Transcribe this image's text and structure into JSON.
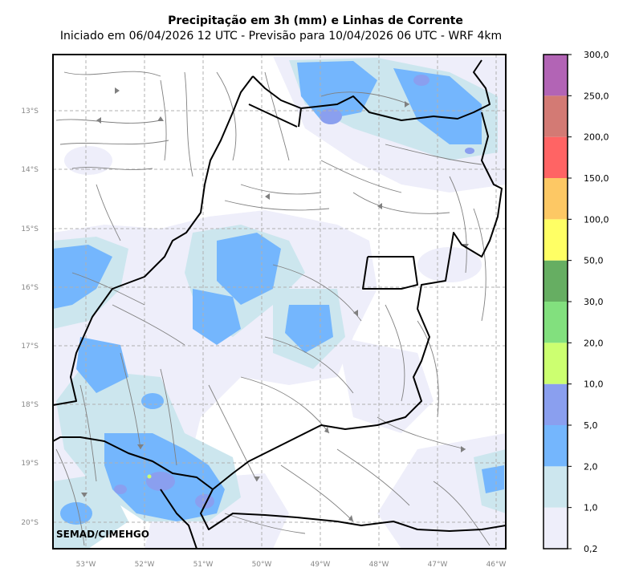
{
  "title": "Precipitação em 3h (mm) e Linhas de Corrente",
  "subtitle": "Iniciado em 06/04/2026 12 UTC - Previsão para 10/04/2026 06 UTC - WRF 4km",
  "credit": "SEMAD/CIMEHGO",
  "lat_labels": [
    "13°S",
    "14°S",
    "15°S",
    "16°S",
    "17°S",
    "18°S",
    "19°S",
    "20°S"
  ],
  "lon_labels": [
    "53°W",
    "52°W",
    "51°W",
    "50°W",
    "49°W",
    "48°W",
    "47°W",
    "46°W"
  ],
  "colorbar": {
    "labels": [
      "0,2",
      "1,0",
      "2,0",
      "5,0",
      "10,0",
      "20,0",
      "30,0",
      "50,0",
      "100,0",
      "150,0",
      "200,0",
      "250,0",
      "300,0"
    ],
    "colors": [
      "#eeeefa",
      "#cce6ee",
      "#74b6fd",
      "#8a9fef",
      "#ccff70",
      "#82e07e",
      "#66ae62",
      "#ffff64",
      "#fdc864",
      "#ff6464",
      "#d37a74",
      "#b264b5"
    ]
  }
}
